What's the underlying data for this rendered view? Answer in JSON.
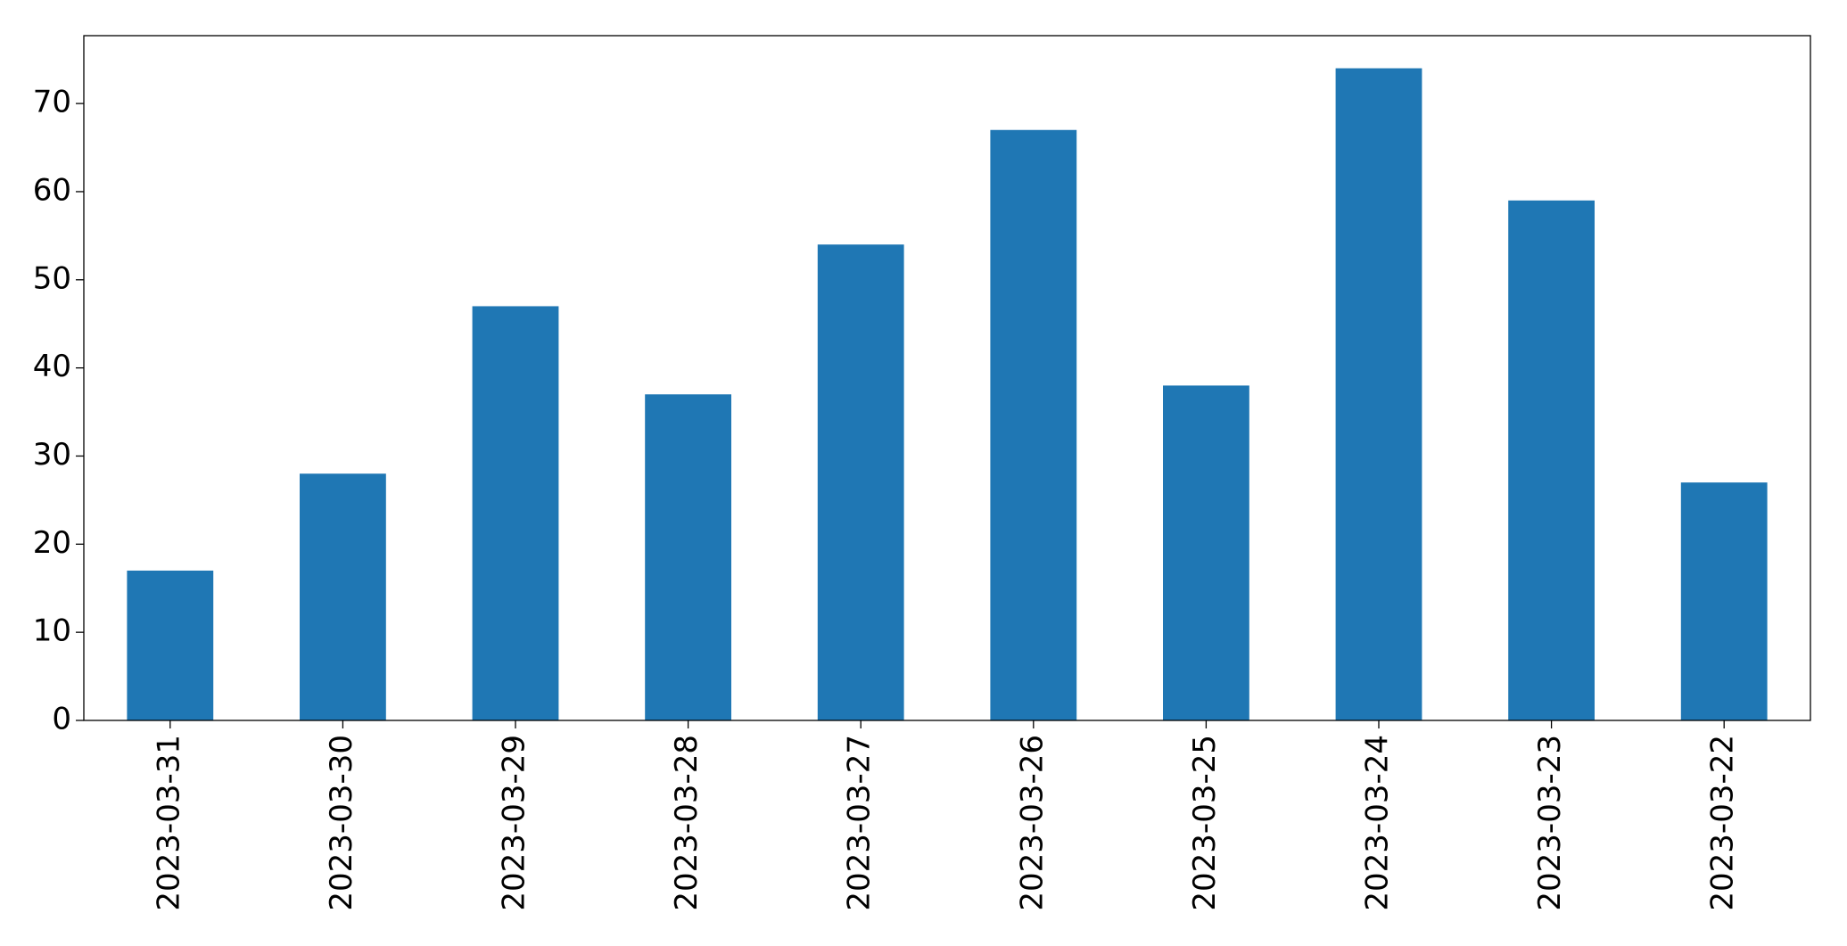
{
  "chart_data": {
    "type": "bar",
    "categories": [
      "2023-03-31",
      "2023-03-30",
      "2023-03-29",
      "2023-03-28",
      "2023-03-27",
      "2023-03-26",
      "2023-03-25",
      "2023-03-24",
      "2023-03-23",
      "2023-03-22"
    ],
    "values": [
      17,
      28,
      47,
      37,
      54,
      67,
      38,
      74,
      59,
      27
    ],
    "color": "#1f77b4",
    "ylim": [
      0,
      77.7
    ],
    "yticks": [
      0,
      10,
      20,
      30,
      40,
      50,
      60,
      70
    ],
    "grid": false
  }
}
